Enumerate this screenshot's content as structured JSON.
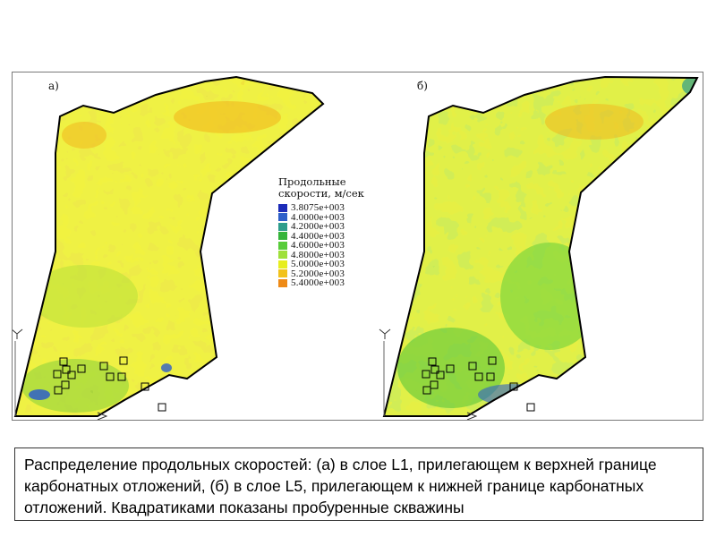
{
  "figure": {
    "panel_a_label": "а)",
    "panel_b_label": "б)",
    "legend": {
      "title": "Продольные скорости, м/сек",
      "items": [
        {
          "value": "3.8075e+003",
          "color": "#1c2bb8"
        },
        {
          "value": "4.0000e+003",
          "color": "#2d5fc9"
        },
        {
          "value": "4.2000e+003",
          "color": "#2e9d8c"
        },
        {
          "value": "4.4000e+003",
          "color": "#34b43a"
        },
        {
          "value": "4.6000e+003",
          "color": "#57cc3a"
        },
        {
          "value": "4.8000e+003",
          "color": "#9fe03a"
        },
        {
          "value": "5.0000e+003",
          "color": "#e7ee1e"
        },
        {
          "value": "5.2000e+003",
          "color": "#f2c21a"
        },
        {
          "value": "5.4000e+003",
          "color": "#ee8a16"
        }
      ]
    },
    "background_colors": {
      "panel_a_base": "#e8ec22",
      "panel_b_base": "#cfe83a"
    }
  },
  "caption": {
    "text": "Распределение продольных скоростей: (а) в слое L1, прилегающем к верхней границе карбонатных отложений, (б) в слое L5, прилегающем к нижней границе карбонатных отложений. Квадратиками показаны пробуренные скважины"
  }
}
